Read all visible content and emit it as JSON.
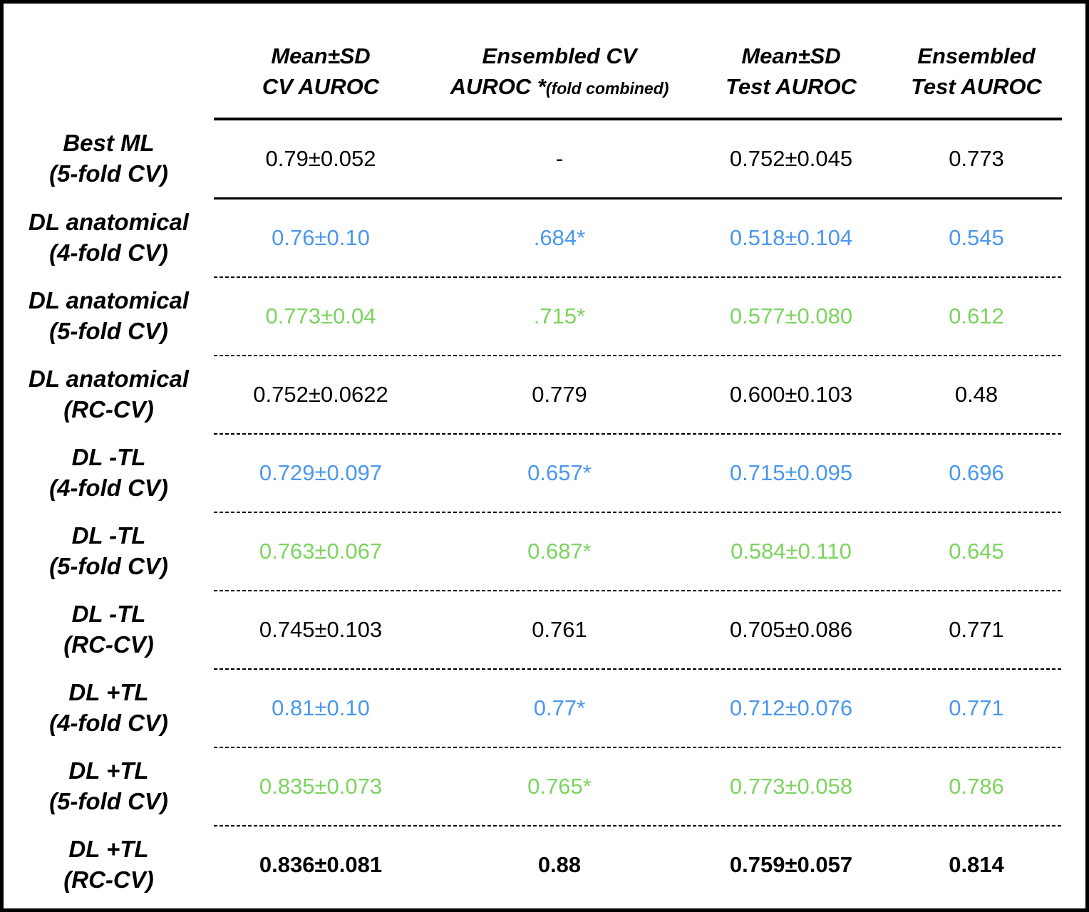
{
  "table": {
    "header": {
      "col2": {
        "line1": "Mean±SD",
        "line2": "CV AUROC"
      },
      "col3": {
        "line1": "Ensembled CV",
        "line2": "AUROC *",
        "line2_small": "(fold combined)"
      },
      "col4": {
        "line1": "Mean±SD",
        "line2": "Test AUROC"
      },
      "col5": {
        "line1": "Ensembled",
        "line2": "Test AUROC"
      }
    },
    "rows": [
      {
        "label_line1": "Best ML",
        "label_line2": "(5-fold CV)",
        "color": "black",
        "bold": false,
        "values": [
          "0.79±0.052",
          "-",
          "0.752±0.045",
          "0.773"
        ]
      },
      {
        "label_line1": "DL anatomical",
        "label_line2": "(4-fold CV)",
        "color": "blue",
        "bold": false,
        "values": [
          "0.76±0.10",
          ".684*",
          "0.518±0.104",
          "0.545"
        ]
      },
      {
        "label_line1": "DL anatomical",
        "label_line2": "(5-fold CV)",
        "color": "green",
        "bold": false,
        "values": [
          "0.773±0.04",
          ".715*",
          "0.577±0.080",
          "0.612"
        ]
      },
      {
        "label_line1": "DL anatomical",
        "label_line2": "(RC-CV)",
        "color": "black",
        "bold": false,
        "values": [
          "0.752±0.0622",
          "0.779",
          "0.600±0.103",
          "0.48"
        ]
      },
      {
        "label_line1": "DL -TL",
        "label_line2": "(4-fold CV)",
        "color": "blue",
        "bold": false,
        "values": [
          "0.729±0.097",
          "0.657*",
          "0.715±0.095",
          "0.696"
        ]
      },
      {
        "label_line1": "DL -TL",
        "label_line2": "(5-fold CV)",
        "color": "green",
        "bold": false,
        "values": [
          "0.763±0.067",
          "0.687*",
          "0.584±0.110",
          "0.645"
        ]
      },
      {
        "label_line1": "DL -TL",
        "label_line2": "(RC-CV)",
        "color": "black",
        "bold": false,
        "values": [
          "0.745±0.103",
          "0.761",
          "0.705±0.086",
          "0.771"
        ]
      },
      {
        "label_line1": "DL +TL",
        "label_line2": "(4-fold CV)",
        "color": "blue",
        "bold": false,
        "values": [
          "0.81±0.10",
          "0.77*",
          "0.712±0.076",
          "0.771"
        ]
      },
      {
        "label_line1": "DL +TL",
        "label_line2": "(5-fold CV)",
        "color": "green",
        "bold": false,
        "values": [
          "0.835±0.073",
          "0.765*",
          "0.773±0.058",
          "0.786"
        ]
      },
      {
        "label_line1": "DL +TL",
        "label_line2": "(RC-CV)",
        "color": "black",
        "bold": true,
        "values": [
          "0.836±0.081",
          "0.88",
          "0.759±0.057",
          "0.814"
        ]
      }
    ],
    "colors": {
      "blue": "#4a97ee",
      "green": "#7cd45e",
      "black": "#000000"
    }
  }
}
